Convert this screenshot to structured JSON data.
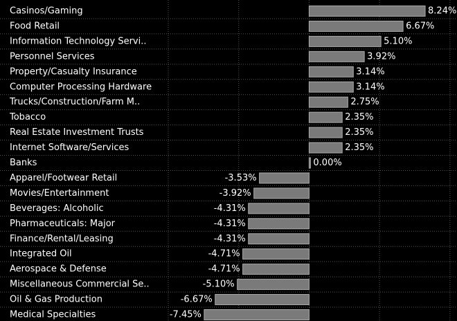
{
  "chart_data": {
    "type": "barh",
    "categories": [
      "Casinos/Gaming",
      "Food Retail",
      "Information Technology Servi..",
      "Personnel Services",
      "Property/Casualty Insurance",
      "Computer Processing Hardware",
      "Trucks/Construction/Farm M..",
      "Tobacco",
      "Real Estate Investment Trusts",
      "Internet Software/Services",
      "Banks",
      "Apparel/Footwear Retail",
      "Movies/Entertainment",
      "Beverages: Alcoholic",
      "Pharmaceuticals: Major",
      "Finance/Rental/Leasing",
      "Integrated Oil",
      "Aerospace & Defense",
      "Miscellaneous Commercial Se..",
      "Oil & Gas Production",
      "Medical Specialties"
    ],
    "values": [
      8.24,
      6.67,
      5.1,
      3.92,
      3.14,
      3.14,
      2.75,
      2.35,
      2.35,
      2.35,
      0.0,
      -3.53,
      -3.92,
      -4.31,
      -4.31,
      -4.31,
      -4.71,
      -4.71,
      -5.1,
      -6.67,
      -7.45
    ],
    "value_labels": [
      "8.24%",
      "6.67%",
      "5.10%",
      "3.92%",
      "3.14%",
      "3.14%",
      "2.75%",
      "2.35%",
      "2.35%",
      "2.35%",
      "0.00%",
      "-3.53%",
      "-3.92%",
      "-4.31%",
      "-4.31%",
      "-4.31%",
      "-4.71%",
      "-4.71%",
      "-5.10%",
      "-6.67%",
      "-7.45%"
    ],
    "color": "#7a7a7a",
    "xlim": [
      -10,
      10.5
    ],
    "xticks": [
      -10,
      -5,
      0,
      5,
      10
    ],
    "grid": true
  }
}
